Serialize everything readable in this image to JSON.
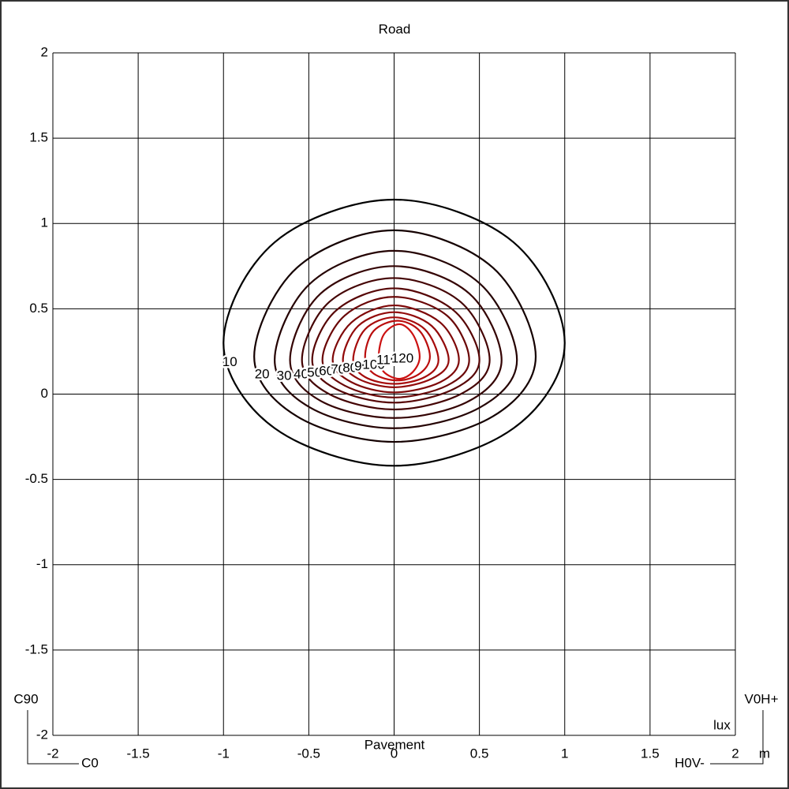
{
  "chart_data": {
    "type": "contour",
    "top_label": "Road",
    "bottom_label": "Pavement",
    "annotations": {
      "top_left": "C90",
      "bottom_left": "C0",
      "top_right": "V0H+",
      "bottom_right": "H0V-",
      "unit": "lux",
      "axis_unit": "m"
    },
    "xlim": [
      -2,
      2
    ],
    "ylim": [
      -2,
      2
    ],
    "xticks": [
      -2,
      -1.5,
      -1,
      -0.5,
      0,
      0.5,
      1,
      1.5,
      2
    ],
    "yticks": [
      -2,
      -1.5,
      -1,
      -0.5,
      0,
      0.5,
      1,
      1.5,
      2
    ],
    "grid": true,
    "series": [
      {
        "level": 10,
        "color": "#000000",
        "x": [
          0,
          0.7,
          1.0,
          0.7,
          0,
          -0.7,
          -1.0,
          -0.7
        ],
        "y": [
          1.14,
          0.89,
          0.3,
          -0.2,
          -0.42,
          -0.2,
          0.3,
          0.89
        ]
      },
      {
        "level": 20,
        "color": "#140000",
        "x": [
          0,
          0.58,
          0.83,
          0.58,
          0,
          -0.57,
          -0.82,
          -0.57
        ],
        "y": [
          0.96,
          0.74,
          0.22,
          -0.13,
          -0.28,
          -0.13,
          0.22,
          0.74
        ]
      },
      {
        "level": 30,
        "color": "#240202",
        "x": [
          0,
          0.5,
          0.72,
          0.5,
          0,
          -0.49,
          -0.7,
          -0.49
        ],
        "y": [
          0.84,
          0.65,
          0.2,
          -0.08,
          -0.2,
          -0.08,
          0.2,
          0.65
        ]
      },
      {
        "level": 40,
        "color": "#340303",
        "x": [
          0,
          0.44,
          0.63,
          0.44,
          0,
          -0.43,
          -0.61,
          -0.43
        ],
        "y": [
          0.75,
          0.59,
          0.2,
          -0.04,
          -0.14,
          -0.04,
          0.2,
          0.59
        ]
      },
      {
        "level": 50,
        "color": "#440404",
        "x": [
          0,
          0.39,
          0.56,
          0.39,
          0,
          -0.38,
          -0.54,
          -0.38
        ],
        "y": [
          0.68,
          0.54,
          0.2,
          0,
          -0.09,
          0,
          0.2,
          0.54
        ]
      },
      {
        "level": 60,
        "color": "#560505",
        "x": [
          0,
          0.35,
          0.5,
          0.35,
          0,
          -0.34,
          -0.48,
          -0.34
        ],
        "y": [
          0.62,
          0.49,
          0.2,
          0.03,
          -0.05,
          0.03,
          0.2,
          0.49
        ]
      },
      {
        "level": 70,
        "color": "#6a0707",
        "x": [
          0,
          0.31,
          0.44,
          0.31,
          0,
          -0.29,
          -0.42,
          -0.29
        ],
        "y": [
          0.57,
          0.46,
          0.2,
          0.05,
          -0.02,
          0.05,
          0.2,
          0.46
        ]
      },
      {
        "level": 80,
        "color": "#7e0808",
        "x": [
          0,
          0.27,
          0.38,
          0.27,
          0,
          -0.25,
          -0.36,
          -0.25
        ],
        "y": [
          0.52,
          0.42,
          0.2,
          0.07,
          0.01,
          0.07,
          0.2,
          0.42
        ]
      },
      {
        "level": 90,
        "color": "#920a0a",
        "x": [
          0,
          0.22,
          0.32,
          0.22,
          0,
          -0.21,
          -0.3,
          -0.21
        ],
        "y": [
          0.48,
          0.4,
          0.2,
          0.09,
          0.04,
          0.09,
          0.2,
          0.4
        ]
      },
      {
        "level": 100,
        "color": "#a60b0b",
        "x": [
          0,
          0.18,
          0.26,
          0.18,
          0,
          -0.17,
          -0.24,
          -0.17
        ],
        "y": [
          0.45,
          0.38,
          0.2,
          0.1,
          0.06,
          0.1,
          0.2,
          0.38
        ]
      },
      {
        "level": 110,
        "color": "#ba0d0d",
        "x": [
          0.02,
          0.15,
          0.21,
          0.15,
          0.02,
          -0.12,
          -0.17,
          -0.12
        ],
        "y": [
          0.43,
          0.37,
          0.22,
          0.12,
          0.08,
          0.12,
          0.22,
          0.37
        ]
      },
      {
        "level": 120,
        "color": "#cc1111",
        "x": [
          0.03,
          0.11,
          0.15,
          0.11,
          0.03,
          -0.06,
          -0.09,
          -0.06
        ],
        "y": [
          0.41,
          0.35,
          0.22,
          0.13,
          0.09,
          0.13,
          0.22,
          0.35
        ]
      }
    ]
  }
}
